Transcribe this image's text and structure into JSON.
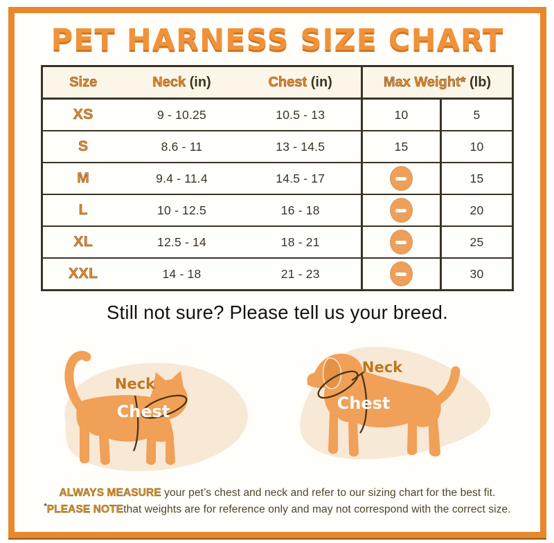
{
  "page": {
    "title": "PET HARNESS SIZE CHART",
    "subtitle": "Still not sure? Please tell us your breed."
  },
  "table": {
    "headers": {
      "size": {
        "accent": "Size",
        "rest": ""
      },
      "neck": {
        "accent": "Neck",
        "rest": " (in)"
      },
      "chest": {
        "accent": "Chest",
        "rest": " (in)"
      },
      "max_weight": {
        "accent": "Max Weight*",
        "rest": " (lb)"
      }
    },
    "rows": [
      {
        "size": "XS",
        "neck": "9 - 10.25",
        "chest": "10.5 - 13",
        "weight_cat": "10",
        "weight_dog": "5"
      },
      {
        "size": "S",
        "neck": "8.6 - 11",
        "chest": "13 - 14.5",
        "weight_cat": "15",
        "weight_dog": "10"
      },
      {
        "size": "M",
        "neck": "9.4 - 11.4",
        "chest": "14.5 - 17",
        "weight_cat": "minus-icon",
        "weight_dog": "15"
      },
      {
        "size": "L",
        "neck": "10 - 12.5",
        "chest": "16 - 18",
        "weight_cat": "minus-icon",
        "weight_dog": "20"
      },
      {
        "size": "XL",
        "neck": "12.5 - 14",
        "chest": "18 - 21",
        "weight_cat": "minus-icon",
        "weight_dog": "25"
      },
      {
        "size": "XXL",
        "neck": "14 - 18",
        "chest": "21 - 23",
        "weight_cat": "minus-icon",
        "weight_dog": "30"
      }
    ]
  },
  "diagrams": {
    "cat": {
      "neck_label": "Neck",
      "chest_label": "Chest"
    },
    "dog": {
      "neck_label": "Neck",
      "chest_label": "Chest"
    }
  },
  "footer": {
    "line1_accent": "ALWAYS MEASURE",
    "line1_rest": " your pet’s chest and neck and refer to our sizing chart for the best fit.",
    "line2_mark": "*",
    "line2_accent": "PLEASE NOTE",
    "line2_rest": "that weights are for reference only and may not correspond with the correct size."
  },
  "colors": {
    "frame_orange": "#E8872B",
    "title_orange": "#F0923A",
    "accent_orange": "#E78A2E",
    "table_line": "#3A3322",
    "table_text": "#3B3422",
    "header_bg": "#FBF6E7",
    "minus_icon": "#EDA05E",
    "animal_body": "#F0A057",
    "blob_peach": "#F8E8D6",
    "neck_label": "#C1761E",
    "chest_label": "#FFFFFF",
    "footer_text": "#4E4527"
  }
}
